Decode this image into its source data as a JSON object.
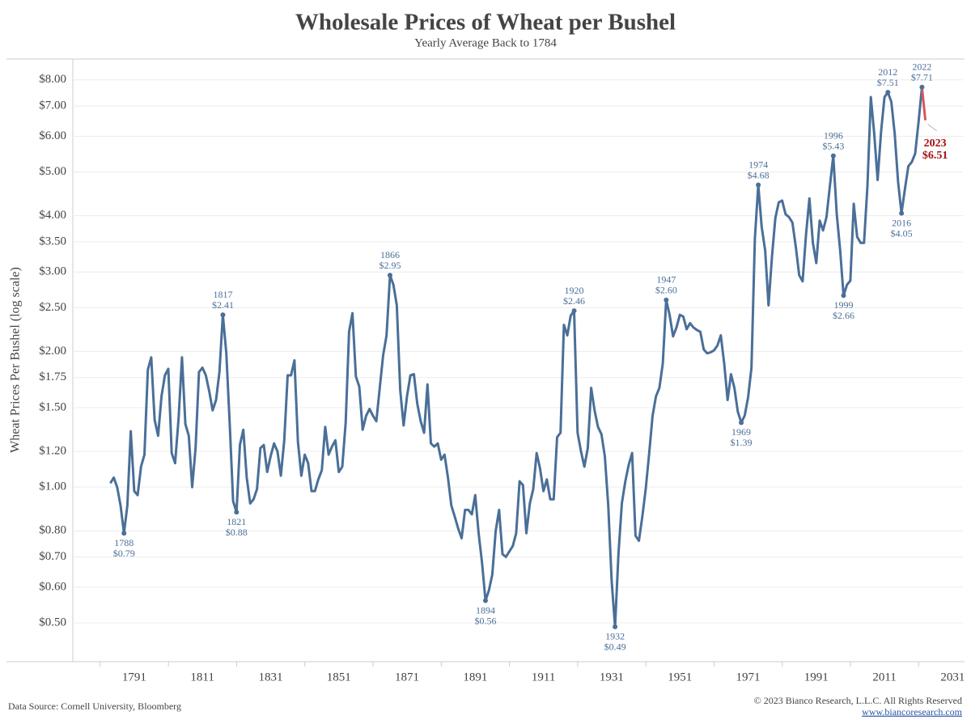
{
  "chart_data": {
    "type": "line",
    "title": "Wholesale Prices of Wheat per Bushel",
    "subtitle": "Yearly Average Back to 1784",
    "ylabel": "Wheat Prices Per Bushel (log scale)",
    "source": "Data Source: Cornell University, Bloomberg",
    "copyright": "© 2023 Bianco Research, L.L.C. All Rights Reserved",
    "website": "www.biancoresearch.com",
    "log_scale": true,
    "grid": true,
    "xlim": [
      1773,
      2034
    ],
    "ylim": [
      0.41,
      8.9
    ],
    "xticks": [
      1791,
      1811,
      1831,
      1851,
      1871,
      1891,
      1911,
      1931,
      1951,
      1971,
      1991,
      2011,
      2031
    ],
    "yticks": [
      {
        "value": 0.5,
        "label": "$0.50"
      },
      {
        "value": 0.6,
        "label": "$0.60"
      },
      {
        "value": 0.7,
        "label": "$0.70"
      },
      {
        "value": 0.8,
        "label": "$0.80"
      },
      {
        "value": 1.0,
        "label": "$1.00"
      },
      {
        "value": 1.2,
        "label": "$1.20"
      },
      {
        "value": 1.5,
        "label": "$1.50"
      },
      {
        "value": 1.75,
        "label": "$1.75"
      },
      {
        "value": 2.0,
        "label": "$2.00"
      },
      {
        "value": 2.5,
        "label": "$2.50"
      },
      {
        "value": 3.0,
        "label": "$3.00"
      },
      {
        "value": 3.5,
        "label": "$3.50"
      },
      {
        "value": 4.0,
        "label": "$4.00"
      },
      {
        "value": 5.0,
        "label": "$5.00"
      },
      {
        "value": 6.0,
        "label": "$6.00"
      },
      {
        "value": 7.0,
        "label": "$7.00"
      },
      {
        "value": 8.0,
        "label": "$8.00"
      }
    ],
    "x": [
      1784,
      1785,
      1786,
      1787,
      1788,
      1789,
      1790,
      1791,
      1792,
      1793,
      1794,
      1795,
      1796,
      1797,
      1798,
      1799,
      1800,
      1801,
      1802,
      1803,
      1804,
      1805,
      1806,
      1807,
      1808,
      1809,
      1810,
      1811,
      1812,
      1813,
      1814,
      1815,
      1816,
      1817,
      1818,
      1819,
      1820,
      1821,
      1822,
      1823,
      1824,
      1825,
      1826,
      1827,
      1828,
      1829,
      1830,
      1831,
      1832,
      1833,
      1834,
      1835,
      1836,
      1837,
      1838,
      1839,
      1840,
      1841,
      1842,
      1843,
      1844,
      1845,
      1846,
      1847,
      1848,
      1849,
      1850,
      1851,
      1852,
      1853,
      1854,
      1855,
      1856,
      1857,
      1858,
      1859,
      1860,
      1861,
      1862,
      1863,
      1864,
      1865,
      1866,
      1867,
      1868,
      1869,
      1870,
      1871,
      1872,
      1873,
      1874,
      1875,
      1876,
      1877,
      1878,
      1879,
      1880,
      1881,
      1882,
      1883,
      1884,
      1885,
      1886,
      1887,
      1888,
      1889,
      1890,
      1891,
      1892,
      1893,
      1894,
      1895,
      1896,
      1897,
      1898,
      1899,
      1900,
      1901,
      1902,
      1903,
      1904,
      1905,
      1906,
      1907,
      1908,
      1909,
      1910,
      1911,
      1912,
      1913,
      1914,
      1915,
      1916,
      1917,
      1918,
      1919,
      1920,
      1921,
      1922,
      1923,
      1924,
      1925,
      1926,
      1927,
      1928,
      1929,
      1930,
      1931,
      1932,
      1933,
      1934,
      1935,
      1936,
      1937,
      1938,
      1939,
      1940,
      1941,
      1942,
      1943,
      1944,
      1945,
      1946,
      1947,
      1948,
      1949,
      1950,
      1951,
      1952,
      1953,
      1954,
      1955,
      1956,
      1957,
      1958,
      1959,
      1960,
      1961,
      1962,
      1963,
      1964,
      1965,
      1966,
      1967,
      1968,
      1969,
      1970,
      1971,
      1972,
      1973,
      1974,
      1975,
      1976,
      1977,
      1978,
      1979,
      1980,
      1981,
      1982,
      1983,
      1984,
      1985,
      1986,
      1987,
      1988,
      1989,
      1990,
      1991,
      1992,
      1993,
      1994,
      1995,
      1996,
      1997,
      1998,
      1999,
      2000,
      2001,
      2002,
      2003,
      2004,
      2005,
      2006,
      2007,
      2008,
      2009,
      2010,
      2011,
      2012,
      2013,
      2014,
      2015,
      2016,
      2017,
      2018,
      2019,
      2020,
      2021,
      2022
    ],
    "series": [
      {
        "color": "#4a6f98",
        "values": [
          1.02,
          1.05,
          1.0,
          0.91,
          0.79,
          0.91,
          1.33,
          0.98,
          0.96,
          1.11,
          1.18,
          1.82,
          1.94,
          1.41,
          1.3,
          1.59,
          1.77,
          1.83,
          1.19,
          1.13,
          1.42,
          1.94,
          1.38,
          1.3,
          1.0,
          1.22,
          1.8,
          1.84,
          1.77,
          1.63,
          1.48,
          1.56,
          1.8,
          2.41,
          1.98,
          1.38,
          0.93,
          0.88,
          1.24,
          1.34,
          1.05,
          0.92,
          0.94,
          0.99,
          1.22,
          1.24,
          1.08,
          1.17,
          1.25,
          1.2,
          1.06,
          1.27,
          1.77,
          1.77,
          1.91,
          1.26,
          1.06,
          1.18,
          1.13,
          0.98,
          0.98,
          1.04,
          1.09,
          1.36,
          1.18,
          1.23,
          1.27,
          1.08,
          1.11,
          1.39,
          2.21,
          2.43,
          1.76,
          1.67,
          1.34,
          1.44,
          1.49,
          1.44,
          1.4,
          1.66,
          1.96,
          2.17,
          2.95,
          2.81,
          2.53,
          1.64,
          1.37,
          1.59,
          1.77,
          1.78,
          1.53,
          1.4,
          1.32,
          1.69,
          1.25,
          1.23,
          1.25,
          1.15,
          1.18,
          1.05,
          0.91,
          0.86,
          0.81,
          0.77,
          0.89,
          0.89,
          0.87,
          0.96,
          0.79,
          0.68,
          0.56,
          0.59,
          0.64,
          0.8,
          0.89,
          0.71,
          0.7,
          0.72,
          0.74,
          0.79,
          1.03,
          1.01,
          0.79,
          0.92,
          0.99,
          1.19,
          1.1,
          0.98,
          1.04,
          0.94,
          0.94,
          1.29,
          1.32,
          2.29,
          2.17,
          2.4,
          2.46,
          1.32,
          1.2,
          1.11,
          1.22,
          1.66,
          1.48,
          1.36,
          1.31,
          1.17,
          0.91,
          0.62,
          0.49,
          0.71,
          0.92,
          1.03,
          1.12,
          1.19,
          0.78,
          0.76,
          0.86,
          0.99,
          1.19,
          1.44,
          1.59,
          1.66,
          1.88,
          2.6,
          2.41,
          2.16,
          2.26,
          2.41,
          2.39,
          2.24,
          2.31,
          2.26,
          2.23,
          2.21,
          2.02,
          1.98,
          1.99,
          2.01,
          2.06,
          2.17,
          1.88,
          1.56,
          1.78,
          1.66,
          1.47,
          1.39,
          1.44,
          1.58,
          1.84,
          3.56,
          4.68,
          3.78,
          3.35,
          2.53,
          3.24,
          3.95,
          4.28,
          4.32,
          4.03,
          3.97,
          3.86,
          3.41,
          2.95,
          2.86,
          3.63,
          4.37,
          3.48,
          3.14,
          3.9,
          3.71,
          3.97,
          4.65,
          5.43,
          4.03,
          3.35,
          2.66,
          2.81,
          2.87,
          4.25,
          3.59,
          3.48,
          3.48,
          4.65,
          7.33,
          6.08,
          4.8,
          6.15,
          7.33,
          7.51,
          7.16,
          6.08,
          4.75,
          4.05,
          4.59,
          5.15,
          5.26,
          5.49,
          6.46,
          7.71
        ]
      },
      {
        "color": "#d9565d",
        "x": [
          2022,
          2023
        ],
        "values": [
          7.71,
          6.51
        ]
      }
    ],
    "annotations": [
      {
        "x": 1788,
        "value": 0.79,
        "label": "$0.79"
      },
      {
        "x": 1817,
        "value": 2.41,
        "label": "$2.41"
      },
      {
        "x": 1821,
        "value": 0.88,
        "label": "$0.88"
      },
      {
        "x": 1866,
        "value": 2.95,
        "label": "$2.95"
      },
      {
        "x": 1894,
        "value": 0.56,
        "label": "$0.56"
      },
      {
        "x": 1920,
        "value": 2.46,
        "label": "$2.46"
      },
      {
        "x": 1932,
        "value": 0.49,
        "label": "$0.49"
      },
      {
        "x": 1947,
        "value": 2.6,
        "label": "$2.60"
      },
      {
        "x": 1969,
        "value": 1.39,
        "label": "$1.39"
      },
      {
        "x": 1974,
        "value": 4.68,
        "label": "$4.68"
      },
      {
        "x": 1996,
        "value": 5.43,
        "label": "$5.43"
      },
      {
        "x": 1999,
        "value": 2.66,
        "label": "$2.66"
      },
      {
        "x": 2012,
        "value": 7.51,
        "label": "$7.51"
      },
      {
        "x": 2016,
        "value": 4.05,
        "label": "$4.05"
      },
      {
        "x": 2022,
        "value": 7.71,
        "label": "$7.71"
      },
      {
        "x": 2023,
        "value": 6.51,
        "label": "$6.51",
        "color": "#a50f15"
      }
    ]
  }
}
